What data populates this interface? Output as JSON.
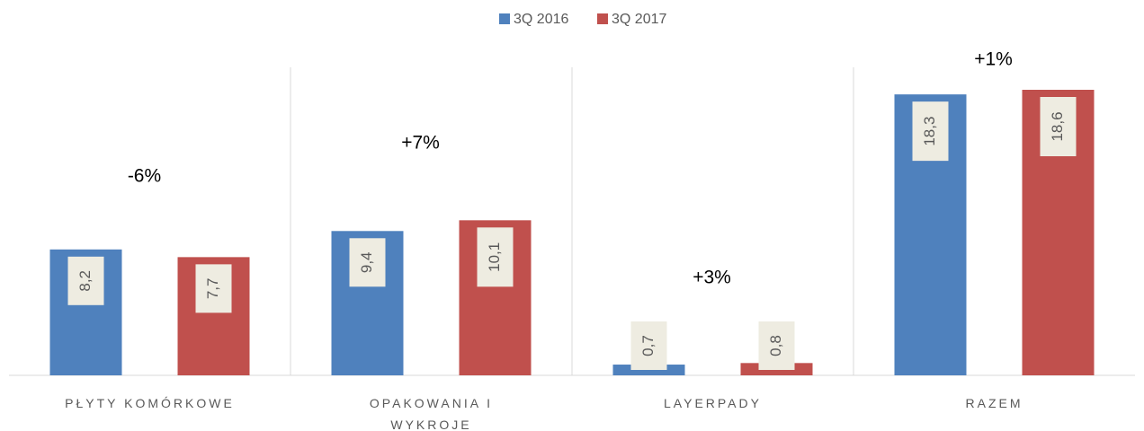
{
  "chart_data": {
    "type": "bar",
    "categories": [
      "PŁYTY KOMÓRKOWE",
      "OPAKOWANIA I WYKROJE",
      "LAYERPADY",
      "RAZEM"
    ],
    "series": [
      {
        "name": "3Q 2016",
        "color": "#4f81bd",
        "values": [
          8.2,
          9.4,
          0.7,
          18.3
        ],
        "value_labels": [
          "8,2",
          "9,4",
          "0,7",
          "18,3"
        ]
      },
      {
        "name": "3Q 2017",
        "color": "#c0504d",
        "values": [
          7.7,
          10.1,
          0.8,
          18.6
        ],
        "value_labels": [
          "7,7",
          "10,1",
          "0,8",
          "18,6"
        ]
      }
    ],
    "annotations": [
      "-6%",
      "+7%",
      "+3%",
      "+1%"
    ],
    "legend": "top"
  }
}
